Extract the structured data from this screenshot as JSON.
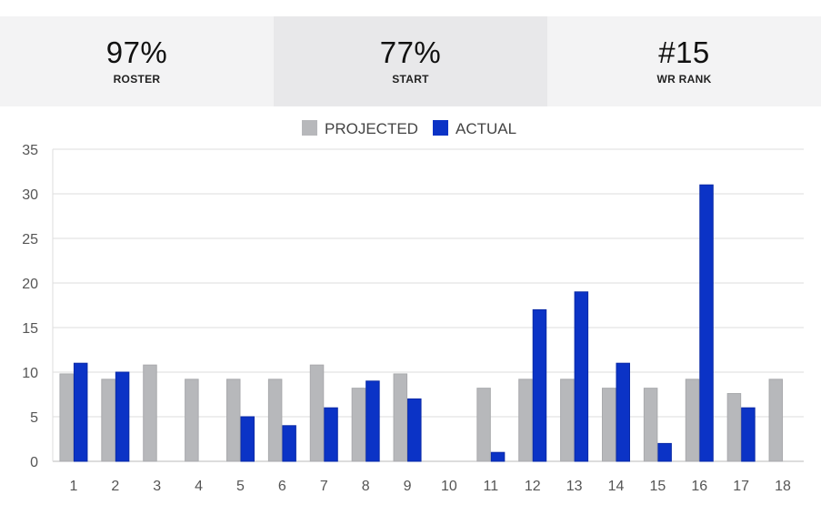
{
  "stats": [
    {
      "value": "97%",
      "label": "ROSTER"
    },
    {
      "value": "77%",
      "label": "START"
    },
    {
      "value": "#15",
      "label": "WR RANK"
    }
  ],
  "colors": {
    "projected": "#b7b8bb",
    "actual": "#0b33c6",
    "grid": "#dddddd",
    "axis": "#bbbbbb"
  },
  "chart_data": {
    "type": "bar",
    "categories": [
      "1",
      "2",
      "3",
      "4",
      "5",
      "6",
      "7",
      "8",
      "9",
      "10",
      "11",
      "12",
      "13",
      "14",
      "15",
      "16",
      "17",
      "18"
    ],
    "series": [
      {
        "name": "PROJECTED",
        "values": [
          9.8,
          9.2,
          10.8,
          9.2,
          9.2,
          9.2,
          10.8,
          8.2,
          9.8,
          null,
          8.2,
          9.2,
          9.2,
          8.2,
          8.2,
          9.2,
          7.6,
          9.2
        ]
      },
      {
        "name": "ACTUAL",
        "values": [
          11,
          10,
          null,
          null,
          5,
          4,
          6,
          9,
          7,
          null,
          1,
          17,
          19,
          11,
          2,
          31,
          6,
          null
        ]
      }
    ],
    "ylim": [
      0,
      35
    ],
    "yticks": [
      0,
      5,
      10,
      15,
      20,
      25,
      30,
      35
    ],
    "grid": true,
    "legend_position": "top-center"
  }
}
